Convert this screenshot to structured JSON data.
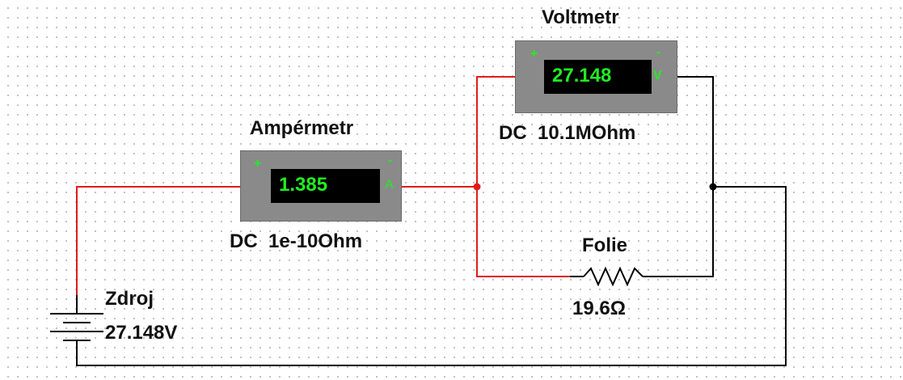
{
  "voltmeter": {
    "title": "Voltmetr",
    "reading": "27.148",
    "unit": "V",
    "plus": "+",
    "minus": "-",
    "spec": "DC  10.1MOhm"
  },
  "ammeter": {
    "title": "Ampérmetr",
    "reading": "1.385",
    "unit": "A",
    "plus": "+",
    "minus": "-",
    "spec": "DC  1e-10Ohm"
  },
  "resistor": {
    "name": "Folie",
    "value": "19.6Ω"
  },
  "source": {
    "name": "Zdroj",
    "value": "27.148V"
  },
  "colors": {
    "positive_wire": "#e01b1b",
    "negative_wire": "#000000",
    "display_text": "#22ee22",
    "meter_body": "#8a8a8a"
  }
}
